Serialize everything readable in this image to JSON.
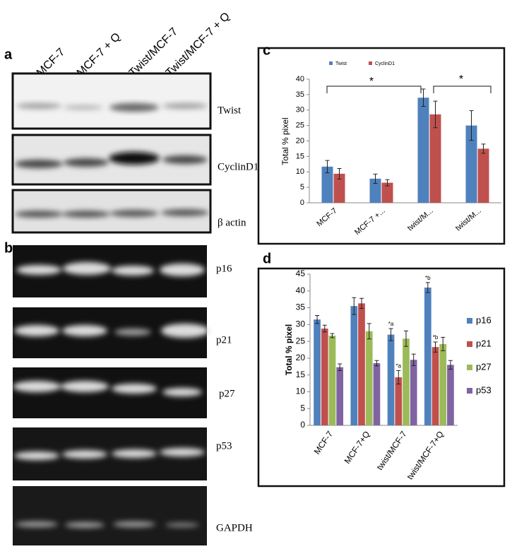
{
  "figure": {
    "panel_a": {
      "label": "a",
      "lanes": [
        "MCF-7",
        "MCF-7 + Q",
        "Twist/MCF-7",
        "Twist/MCF-7 + Q"
      ],
      "proteins": [
        "Twist",
        "CyclinD1",
        "β actin"
      ]
    },
    "panel_b": {
      "label": "b",
      "genes": [
        "p16",
        "p21",
        "p27",
        "p53",
        "GAPDH"
      ]
    }
  },
  "chart_data": [
    {
      "type": "bar",
      "panel_label": "c",
      "ylabel": "Total % pixel",
      "categories": [
        "MCF-7",
        "MCF-7 +...",
        "twist/M...",
        "twist/M..."
      ],
      "series": [
        {
          "name": "Twist",
          "color": "#4f81bd",
          "values": [
            11.7,
            7.8,
            34,
            25
          ],
          "errors": [
            2,
            1.5,
            2.8,
            4.8
          ]
        },
        {
          "name": "CyclinD1",
          "color": "#c0504d",
          "values": [
            9.4,
            6.5,
            28.6,
            17.5
          ],
          "errors": [
            1.7,
            1,
            4.3,
            1.5
          ]
        }
      ],
      "ylim": [
        0,
        40
      ],
      "yticks": [
        0,
        5,
        10,
        15,
        20,
        25,
        30,
        35,
        40
      ],
      "legend": "top",
      "annotations": [
        "*",
        "*"
      ]
    },
    {
      "type": "bar",
      "panel_label": "d",
      "ylabel": "Total % pixel",
      "categories": [
        "MCF-7",
        "MCF-7+Q",
        "twist/MCF-7",
        "twist/MCF-7+Q"
      ],
      "series": [
        {
          "name": "p16",
          "color": "#4f81bd",
          "values": [
            31.5,
            35.5,
            27,
            41
          ],
          "errors": [
            1.2,
            2.5,
            1.8,
            1.5
          ],
          "notes": [
            null,
            null,
            "*a",
            "*b"
          ]
        },
        {
          "name": "p21",
          "color": "#c0504d",
          "values": [
            28.8,
            36.3,
            14.3,
            23.3
          ],
          "errors": [
            1,
            1.5,
            2,
            1.5
          ],
          "notes": [
            null,
            null,
            "*a",
            "*b"
          ]
        },
        {
          "name": "p27",
          "color": "#9bbb59",
          "values": [
            26.7,
            28,
            25.8,
            24.2
          ],
          "errors": [
            0.6,
            2.3,
            2.3,
            2
          ],
          "notes": [
            null,
            null,
            null,
            null
          ]
        },
        {
          "name": "p53",
          "color": "#8064a2",
          "values": [
            17.3,
            18.5,
            19.5,
            18
          ],
          "errors": [
            1,
            0.8,
            1.7,
            1.3
          ],
          "notes": [
            null,
            null,
            null,
            null
          ]
        }
      ],
      "ylim": [
        0,
        45
      ],
      "yticks": [
        0,
        5,
        10,
        15,
        20,
        25,
        30,
        35,
        40,
        45
      ],
      "legend": "right"
    }
  ]
}
